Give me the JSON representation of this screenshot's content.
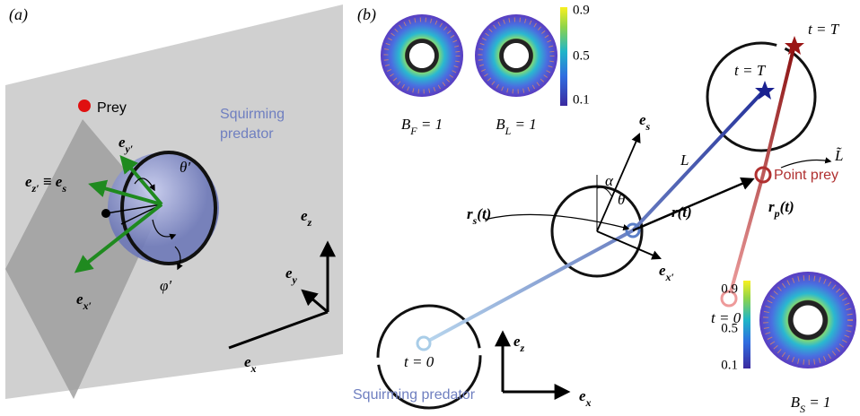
{
  "panel_a": {
    "label": "(a)",
    "prey": "Prey",
    "predator": [
      "Squirming",
      "predator"
    ],
    "e_y_prime": [
      {
        "t": "e",
        "sub": "y′"
      }
    ],
    "e_z_prime": [
      {
        "t": "e",
        "sub": "z′"
      },
      {
        "t": " ≡ "
      },
      {
        "t": "e",
        "sub": "s"
      }
    ],
    "theta": "θ′",
    "phi": "φ′",
    "e_x_prime": [
      {
        "t": "e",
        "sub": "x′"
      }
    ],
    "e_z": [
      {
        "t": "e",
        "sub": "z"
      }
    ],
    "e_y": [
      {
        "t": "e",
        "sub": "y"
      }
    ],
    "e_x": [
      {
        "t": "e",
        "sub": "x"
      }
    ]
  },
  "panel_b": {
    "label": "(b)",
    "B_F": [
      {
        "t": "B",
        "sub": "F"
      },
      {
        "t": " = 1"
      }
    ],
    "B_L": [
      {
        "t": "B",
        "sub": "L"
      },
      {
        "t": " = 1"
      }
    ],
    "colorbar_top": [
      0.9,
      0.5,
      0.1
    ],
    "t_T_predator": "t = T",
    "t_T_prey": "t = T",
    "L_tilde": "L̃",
    "e_s": [
      {
        "t": "e",
        "sub": "s"
      }
    ],
    "L": "L",
    "alpha": "α",
    "theta": "θ",
    "r_s": [
      {
        "t": "r",
        "sub": "s"
      },
      {
        "t": "(t)"
      }
    ],
    "r": [
      {
        "t": "r"
      },
      {
        "t": "(t)"
      }
    ],
    "point_prey": "Point prey",
    "r_p": [
      {
        "t": "r",
        "sub": "p"
      },
      {
        "t": "(t)"
      }
    ],
    "t0_prey": "t = 0",
    "t0_predator": "t = 0",
    "e_x_prime": [
      {
        "t": "e",
        "sub": "x′"
      }
    ],
    "e_z": [
      {
        "t": "e",
        "sub": "z"
      }
    ],
    "e_x": [
      {
        "t": "e",
        "sub": "x"
      }
    ],
    "predator": "Squirming predator",
    "colorbar_bottom": [
      0.9,
      0.5,
      0.1
    ],
    "B_S": [
      {
        "t": "B",
        "sub": "S"
      },
      {
        "t": " = 1"
      }
    ]
  }
}
